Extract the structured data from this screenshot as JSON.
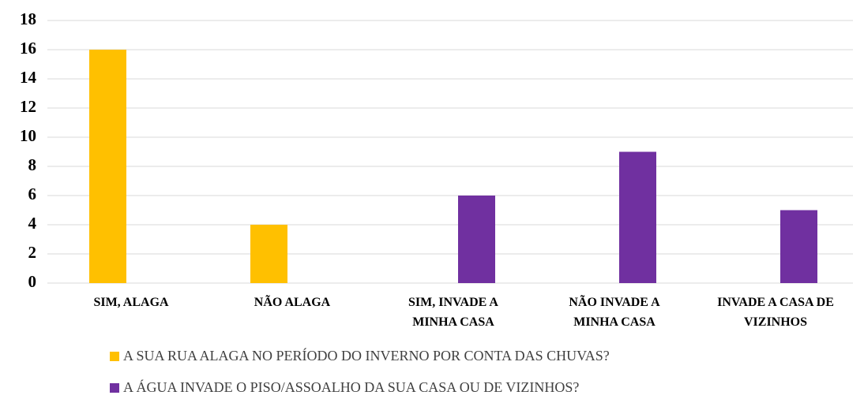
{
  "chart_data": {
    "type": "bar",
    "categories": [
      "SIM, ALAGA",
      "NÃO ALAGA",
      "SIM, INVADE A\nMINHA CASA",
      "NÃO  INVADE A\nMINHA CASA",
      "INVADE A CASA DE\nVIZINHOS"
    ],
    "series": [
      {
        "name": "A SUA RUA ALAGA NO PERÍODO DO INVERNO POR CONTA DAS CHUVAS?",
        "color": "#ffc000",
        "values": [
          16,
          4,
          null,
          null,
          null
        ]
      },
      {
        "name": "A ÁGUA INVADE O PISO/ASSOALHO DA SUA CASA OU DE VIZINHOS?",
        "color": "#7030a0",
        "values": [
          null,
          null,
          6,
          9,
          5
        ]
      }
    ],
    "ylim": [
      0,
      18
    ],
    "yticks": [
      0,
      2,
      4,
      6,
      8,
      10,
      12,
      14,
      16,
      18
    ],
    "grid": true,
    "legend": "bottom"
  }
}
